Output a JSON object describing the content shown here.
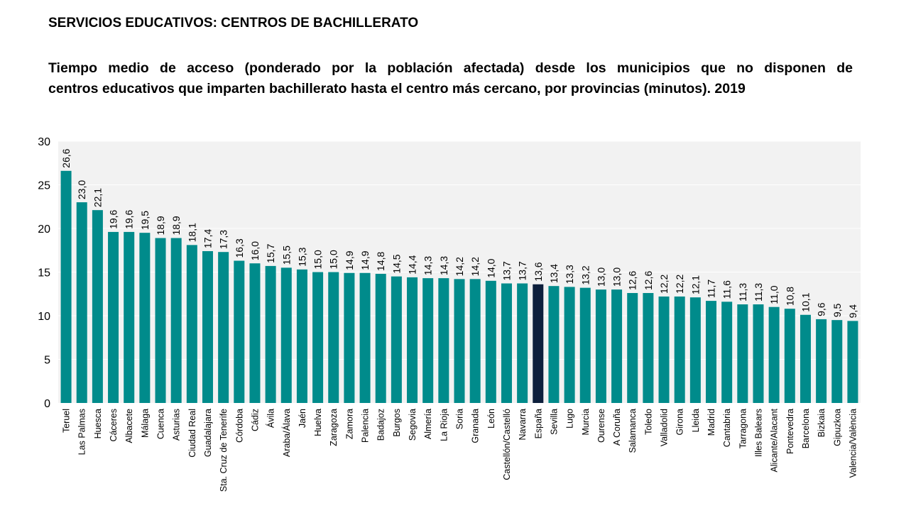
{
  "section_title": "SERVICIOS EDUCATIVOS: CENTROS DE BACHILLERATO",
  "chart_data": {
    "type": "bar",
    "title_line1": "Tiempo medio de acceso (ponderado por la población afectada) desde los municipios que no disponen de",
    "title_line2": "centros educativos que imparten bachillerato hasta el centro más cercano, por provincias (minutos). 2019",
    "xlabel": "",
    "ylabel": "",
    "ylim": [
      0,
      30
    ],
    "yticks": [
      0,
      5,
      10,
      15,
      20,
      25,
      30
    ],
    "grid": true,
    "highlight": "España",
    "colors": {
      "bar": "#008b8b",
      "highlight": "#0d1f3c",
      "plot_bg": "#f2f2f2",
      "grid": "#ffffff"
    },
    "categories": [
      "Teruel",
      "Las Palmas",
      "Huesca",
      "Cáceres",
      "Albacete",
      "Málaga",
      "Cuenca",
      "Asturias",
      "Ciudad Real",
      "Guadalajara",
      "Sta. Cruz de Tenerife",
      "Córdoba",
      "Cádiz",
      "Ávila",
      "Araba/Álava",
      "Jaén",
      "Huelva",
      "Zaragoza",
      "Zamora",
      "Palencia",
      "Badajoz",
      "Burgos",
      "Segovia",
      "Almería",
      "La Rioja",
      "Soria",
      "Granada",
      "León",
      "Castellón/Castelló",
      "Navarra",
      "España",
      "Sevilla",
      "Lugo",
      "Murcia",
      "Ourense",
      "A Coruña",
      "Salamanca",
      "Toledo",
      "Valladolid",
      "Girona",
      "Lleida",
      "Madrid",
      "Cantabria",
      "Tarragona",
      "Illes Balears",
      "Alicante/Alacant",
      "Pontevedra",
      "Barcelona",
      "Bizkaia",
      "Gipuzkoa",
      "Valencia/València"
    ],
    "values": [
      26.6,
      23.0,
      22.1,
      19.6,
      19.6,
      19.5,
      18.9,
      18.9,
      18.1,
      17.4,
      17.3,
      16.3,
      16.0,
      15.7,
      15.5,
      15.3,
      15.0,
      15.0,
      14.9,
      14.9,
      14.8,
      14.5,
      14.4,
      14.3,
      14.3,
      14.2,
      14.2,
      14.0,
      13.7,
      13.7,
      13.6,
      13.4,
      13.3,
      13.2,
      13.0,
      13.0,
      12.6,
      12.6,
      12.2,
      12.2,
      12.1,
      11.7,
      11.6,
      11.3,
      11.3,
      11.0,
      10.8,
      10.1,
      9.6,
      9.5,
      9.4
    ],
    "value_labels": [
      "26,6",
      "23,0",
      "22,1",
      "19,6",
      "19,6",
      "19,5",
      "18,9",
      "18,9",
      "18,1",
      "17,4",
      "17,3",
      "16,3",
      "16,0",
      "15,7",
      "15,5",
      "15,3",
      "15,0",
      "15,0",
      "14,9",
      "14,9",
      "14,8",
      "14,5",
      "14,4",
      "14,3",
      "14,3",
      "14,2",
      "14,2",
      "14,0",
      "13,7",
      "13,7",
      "13,6",
      "13,4",
      "13,3",
      "13,2",
      "13,0",
      "13,0",
      "12,6",
      "12,6",
      "12,2",
      "12,2",
      "12,1",
      "11,7",
      "11,6",
      "11,3",
      "11,3",
      "11,0",
      "10,8",
      "10,1",
      "9,6",
      "9,5",
      "9,4"
    ]
  }
}
